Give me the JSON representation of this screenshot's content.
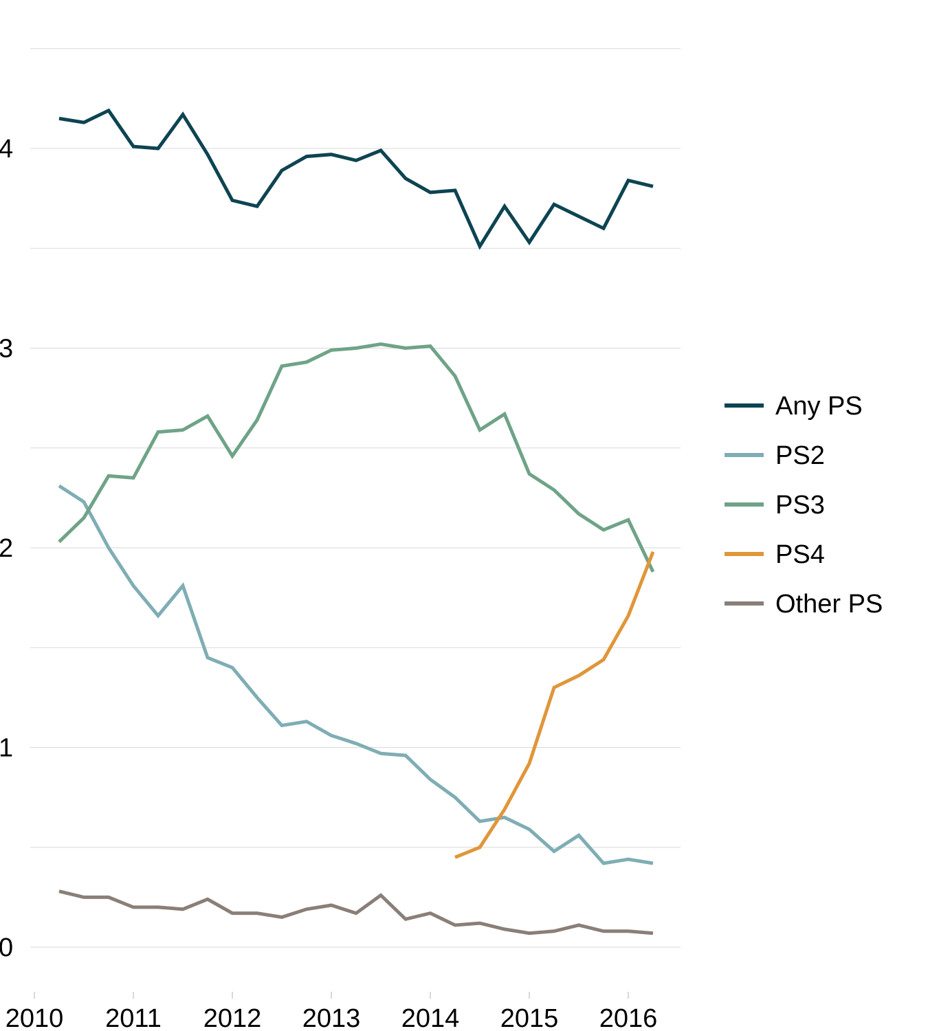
{
  "chart_data": {
    "type": "line",
    "title": "",
    "xlabel": "",
    "ylabel": "",
    "xlim": [
      2010,
      2016.5
    ],
    "ylim": [
      -0.2,
      4.6
    ],
    "grid": true,
    "legend_position": "right",
    "x_ticks": [
      2010,
      2011,
      2012,
      2013,
      2014,
      2015,
      2016
    ],
    "x_tick_labels": [
      "2010",
      "2011",
      "2012",
      "2013",
      "2014",
      "2015",
      "2016"
    ],
    "y_ticks": [
      0,
      1,
      2,
      3,
      4
    ],
    "y_tick_labels": [
      "0",
      "1",
      "2",
      "3",
      "4"
    ],
    "x_start": 2010.25,
    "x_step": 0.25,
    "series": [
      {
        "name": "Any PS",
        "color": "#0d4452",
        "start": 2010.25,
        "values": [
          4.15,
          4.13,
          4.19,
          4.01,
          4.0,
          4.17,
          3.97,
          3.74,
          3.71,
          3.89,
          3.96,
          3.97,
          3.94,
          3.99,
          3.85,
          3.78,
          3.79,
          3.51,
          3.71,
          3.53,
          3.72,
          3.66,
          3.6,
          3.84,
          3.81
        ]
      },
      {
        "name": "PS2",
        "color": "#7fadb4",
        "start": 2010.25,
        "values": [
          2.31,
          2.23,
          2.0,
          1.81,
          1.66,
          1.81,
          1.45,
          1.4,
          1.25,
          1.11,
          1.13,
          1.06,
          1.02,
          0.97,
          0.96,
          0.84,
          0.75,
          0.63,
          0.65,
          0.59,
          0.48,
          0.56,
          0.42,
          0.44,
          0.42
        ]
      },
      {
        "name": "PS3",
        "color": "#6fa388",
        "start": 2010.25,
        "values": [
          2.03,
          2.15,
          2.36,
          2.35,
          2.58,
          2.59,
          2.66,
          2.46,
          2.64,
          2.91,
          2.93,
          2.99,
          3.0,
          3.02,
          3.0,
          3.01,
          2.86,
          2.59,
          2.67,
          2.37,
          2.29,
          2.17,
          2.09,
          2.14,
          1.88
        ]
      },
      {
        "name": "PS4",
        "color": "#e0963a",
        "start": 2014.25,
        "values": [
          0.45,
          0.5,
          0.69,
          0.92,
          1.3,
          1.36,
          1.44,
          1.66,
          1.98
        ]
      },
      {
        "name": "Other PS",
        "color": "#8a7f78",
        "start": 2010.25,
        "values": [
          0.28,
          0.25,
          0.25,
          0.2,
          0.2,
          0.19,
          0.24,
          0.17,
          0.17,
          0.15,
          0.19,
          0.21,
          0.17,
          0.26,
          0.14,
          0.17,
          0.11,
          0.12,
          0.09,
          0.07,
          0.08,
          0.11,
          0.08,
          0.08,
          0.07
        ]
      }
    ]
  }
}
